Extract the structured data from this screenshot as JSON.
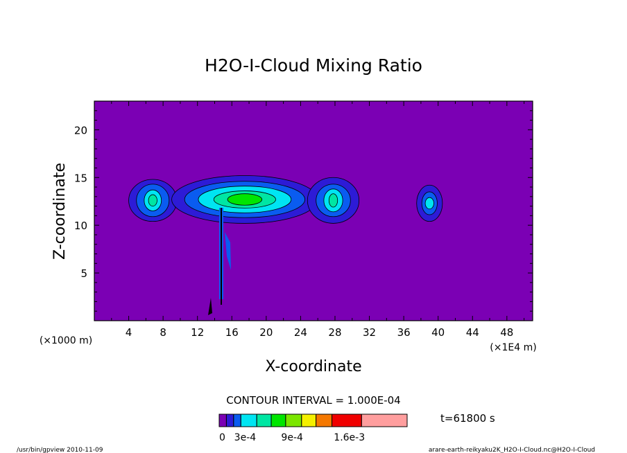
{
  "chart_data": {
    "type": "heatmap",
    "title": "H2O-I-Cloud Mixing Ratio",
    "xlabel": "X-coordinate",
    "ylabel": "Z-coordinate",
    "xunit_left": "(×1000 m)",
    "xunit_right": "(×1E4 m)",
    "xlim": [
      0,
      51
    ],
    "ylim": [
      0,
      23
    ],
    "xticks": [
      4,
      8,
      12,
      16,
      20,
      24,
      28,
      32,
      36,
      40,
      44,
      48
    ],
    "yticks": [
      5,
      10,
      15,
      20
    ],
    "contour_interval": "CONTOUR INTERVAL = 1.000E-04",
    "time_label": "t=61800 s",
    "background_color": "#7b00b4",
    "color_levels": [
      "#7b00b4",
      "#2d1bd6",
      "#0a5cf0",
      "#00e5f2",
      "#00e6a3",
      "#00e600",
      "#7be600",
      "#f5f000",
      "#f57800",
      "#f00000",
      "#ff9e9e"
    ],
    "colorbar_labels": [
      {
        "value": "0",
        "position_fraction": 0.0
      },
      {
        "value": "3e-4",
        "position_fraction": 0.08
      },
      {
        "value": "9e-4",
        "position_fraction": 0.33
      },
      {
        "value": "1.6e-3",
        "position_fraction": 0.61
      }
    ],
    "cells": [
      {
        "name": "cell-x7",
        "x": 6.8,
        "z": 12.6,
        "rings": [
          [
            2.8,
            2.2
          ],
          [
            1.9,
            1.7
          ],
          [
            1.0,
            1.1
          ],
          [
            0.5,
            0.6
          ]
        ]
      },
      {
        "name": "cell-x14-21",
        "x": 17.5,
        "z": 12.7,
        "rings": [
          [
            8.5,
            2.5
          ],
          [
            7.0,
            1.9
          ],
          [
            5.4,
            1.4
          ],
          [
            3.6,
            0.9
          ],
          [
            2.0,
            0.6
          ]
        ]
      },
      {
        "name": "cell-x28",
        "x": 27.8,
        "z": 12.6,
        "rings": [
          [
            3.0,
            2.4
          ],
          [
            2.0,
            1.7
          ],
          [
            1.1,
            1.2
          ],
          [
            0.5,
            0.7
          ]
        ]
      },
      {
        "name": "cell-x39",
        "x": 39.0,
        "z": 12.3,
        "rings": [
          [
            1.5,
            1.9
          ],
          [
            0.9,
            1.2
          ],
          [
            0.5,
            0.6
          ]
        ]
      }
    ]
  },
  "footer": {
    "left": "/usr/bin/gpview  2010-11-09",
    "right": "arare-earth-reikyaku2K_H2O-I-Cloud.nc@H2O-I-Cloud"
  }
}
